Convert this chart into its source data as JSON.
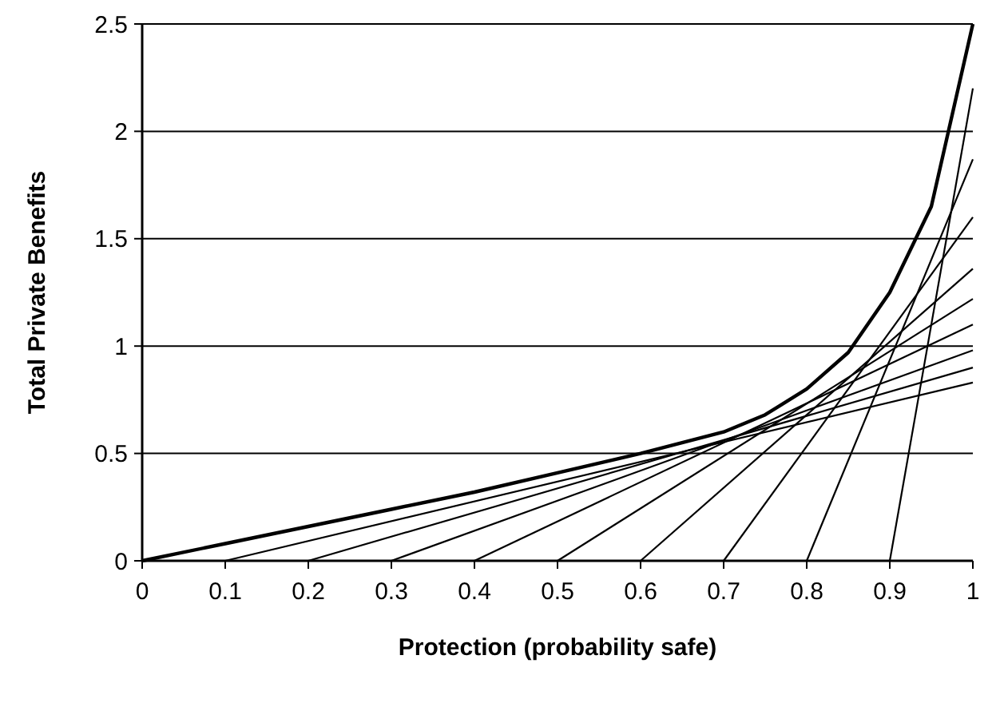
{
  "chart_data": {
    "type": "line",
    "xlabel": "Protection (probability safe)",
    "ylabel": "Total Private Benefits",
    "xlim": [
      0,
      1
    ],
    "ylim": [
      0,
      2.5
    ],
    "xticks": [
      0,
      0.1,
      0.2,
      0.3,
      0.4,
      0.5,
      0.6,
      0.7,
      0.8,
      0.9,
      1
    ],
    "yticks": [
      0,
      0.5,
      1,
      1.5,
      2,
      2.5
    ],
    "grid": "y",
    "line_style": "solid",
    "series": [
      {
        "color": "#000000",
        "x": [
          0,
          0.1,
          0.2,
          0.3,
          0.4,
          0.5,
          0.6,
          0.7,
          0.75,
          0.8,
          0.85,
          0.9,
          0.95,
          1
        ],
        "values": [
          0,
          0.08,
          0.16,
          0.24,
          0.32,
          0.41,
          0.5,
          0.6,
          0.68,
          0.8,
          0.97,
          1.25,
          1.65,
          2.5
        ]
      },
      {
        "color": "#000000",
        "x": [
          0.1,
          1
        ],
        "values": [
          0,
          0.83
        ]
      },
      {
        "color": "#000000",
        "x": [
          0.2,
          1
        ],
        "values": [
          0,
          0.9
        ]
      },
      {
        "color": "#000000",
        "x": [
          0.3,
          1
        ],
        "values": [
          0,
          0.98
        ]
      },
      {
        "color": "#000000",
        "x": [
          0.4,
          1
        ],
        "values": [
          0,
          1.1
        ]
      },
      {
        "color": "#000000",
        "x": [
          0.5,
          1
        ],
        "values": [
          0,
          1.22
        ]
      },
      {
        "color": "#000000",
        "x": [
          0.6,
          1
        ],
        "values": [
          0,
          1.36
        ]
      },
      {
        "color": "#000000",
        "x": [
          0.7,
          1
        ],
        "values": [
          0,
          1.6
        ]
      },
      {
        "color": "#000000",
        "x": [
          0.8,
          1
        ],
        "values": [
          0,
          1.87
        ]
      },
      {
        "color": "#000000",
        "x": [
          0.9,
          1
        ],
        "values": [
          0,
          2.2
        ]
      }
    ]
  }
}
